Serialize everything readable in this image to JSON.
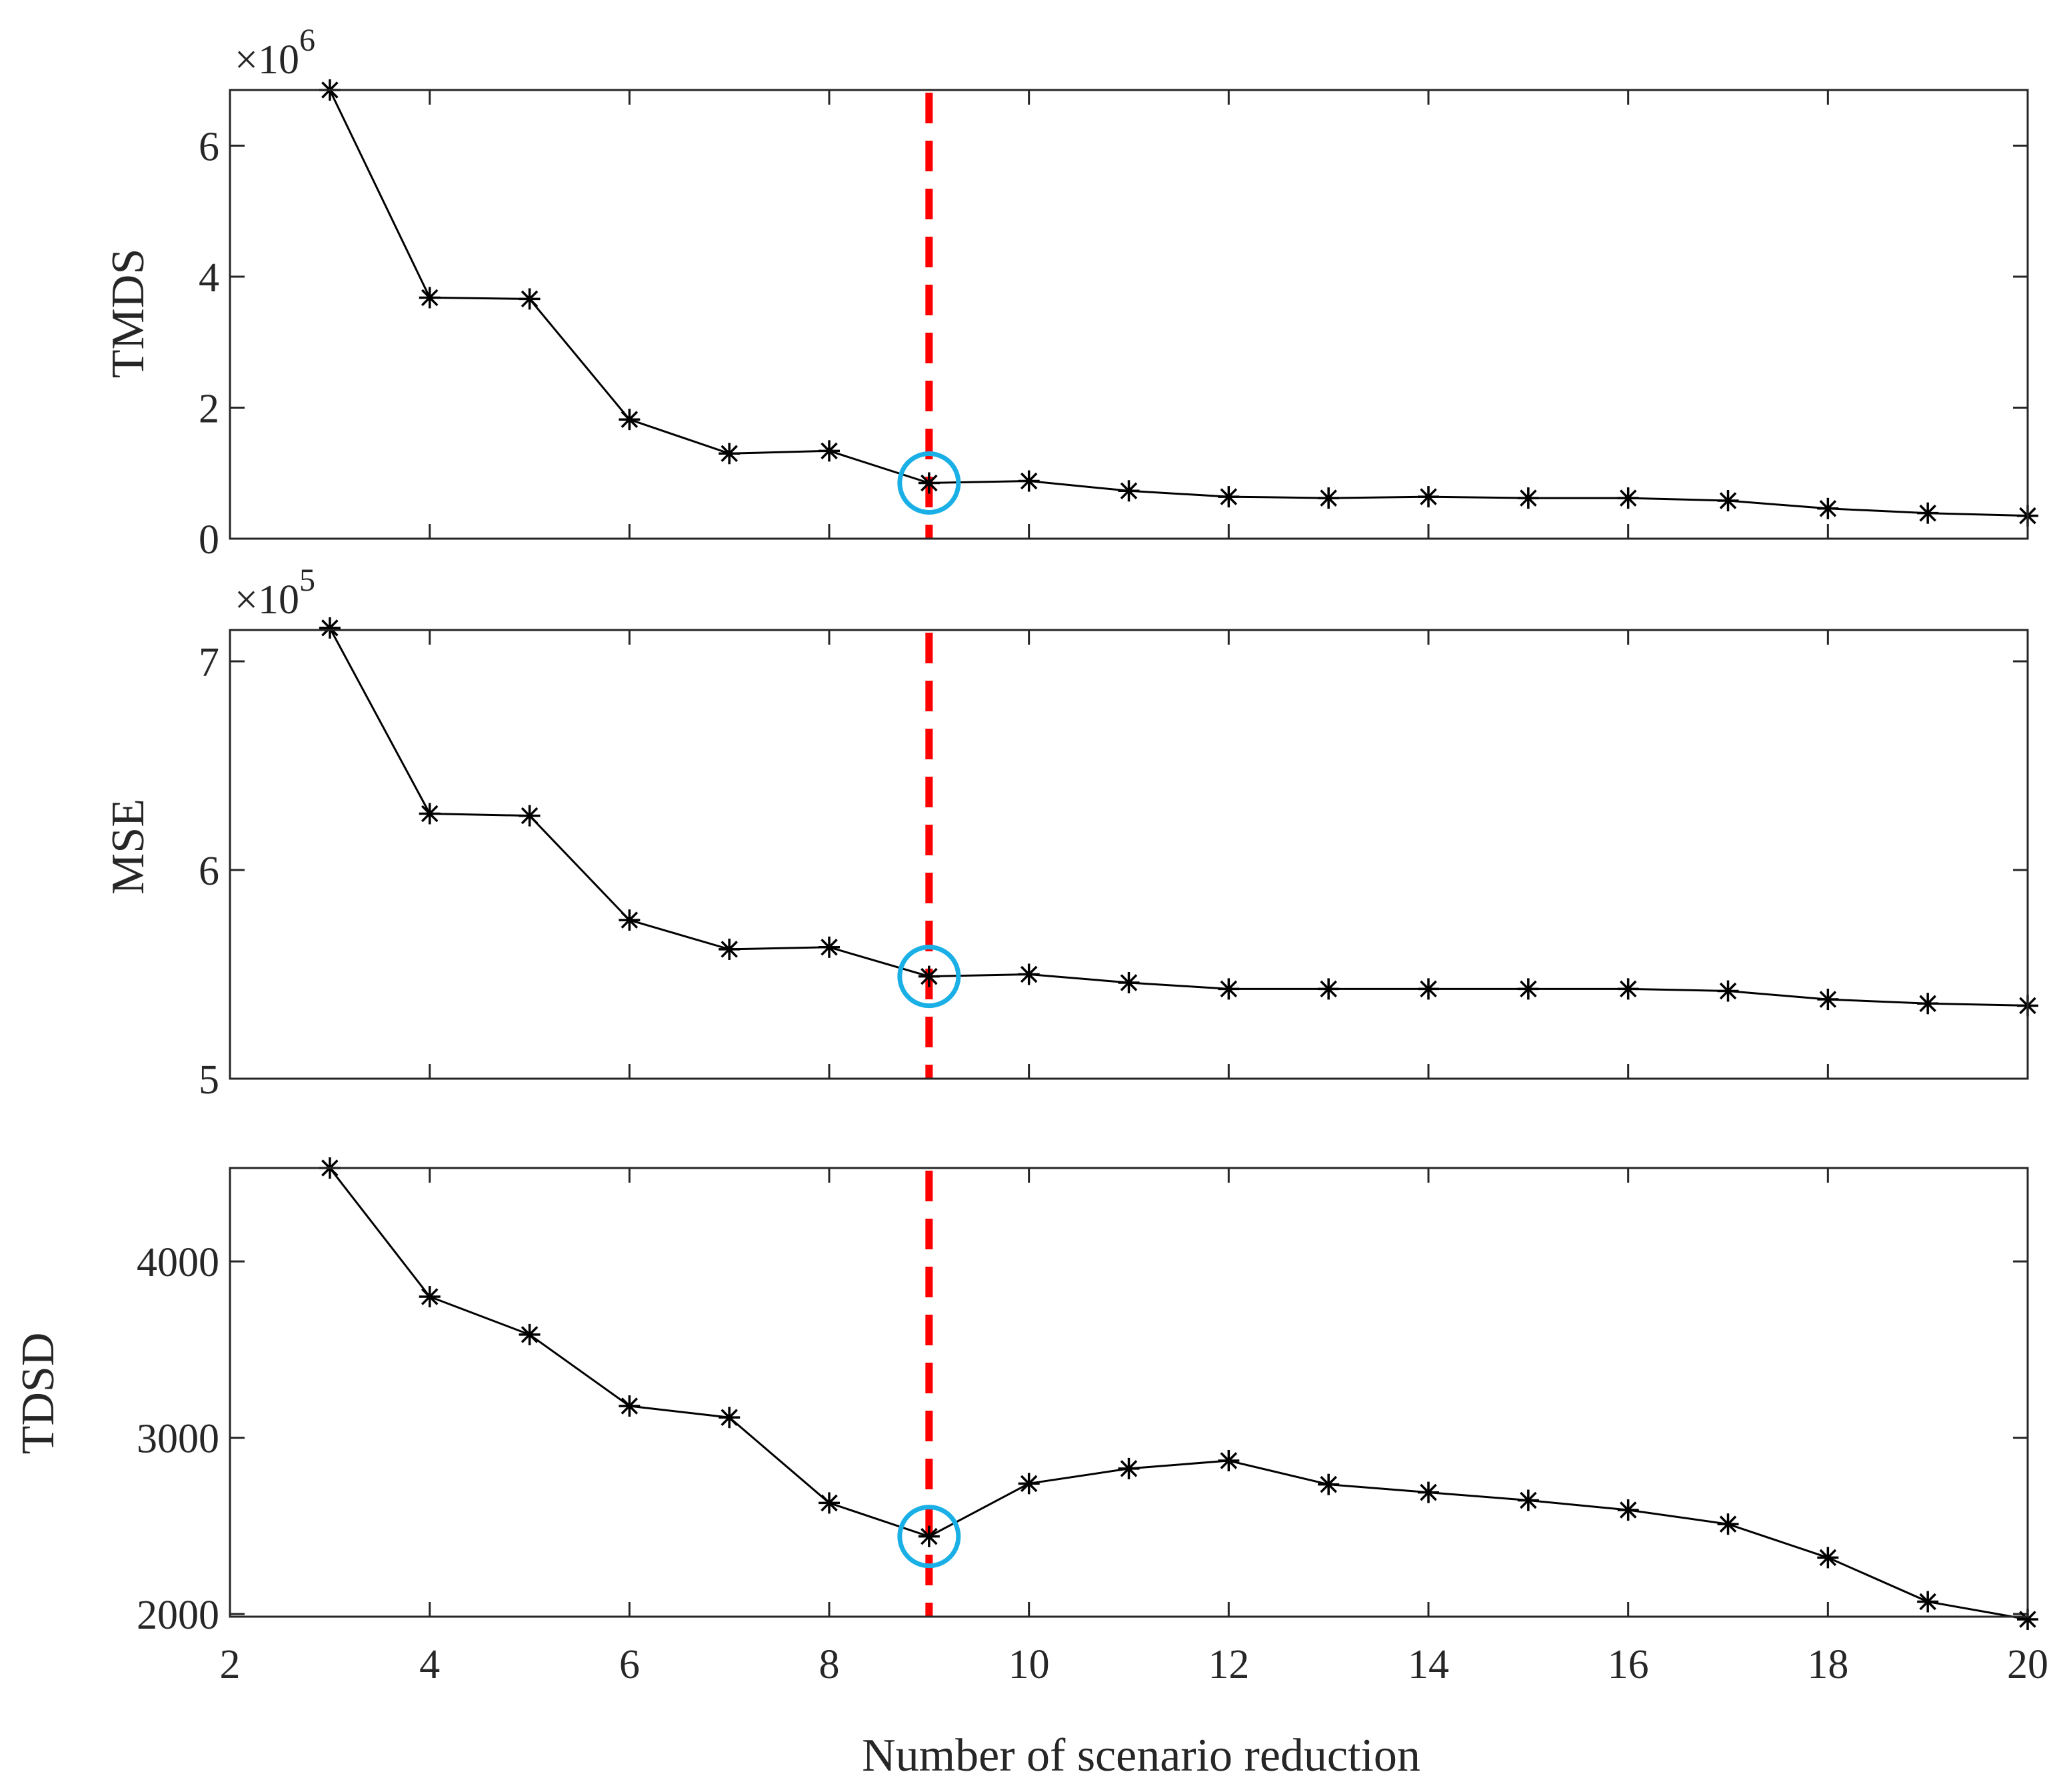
{
  "colors": {
    "series": "#000000",
    "axes": "#262626",
    "vline": "#ff0000",
    "highlight": "#1ab0e6"
  },
  "chart_data": [
    {
      "type": "line",
      "id": "tmds",
      "title": "",
      "xlabel": "",
      "ylabel": "TMDS",
      "exponent_base": "×10",
      "exponent_power": "6",
      "scale": 1000000,
      "x": [
        3,
        4,
        5,
        6,
        7,
        8,
        9,
        10,
        11,
        12,
        13,
        14,
        15,
        16,
        17,
        18,
        19,
        20
      ],
      "values": [
        6.85,
        3.68,
        3.66,
        1.82,
        1.3,
        1.34,
        0.85,
        0.88,
        0.73,
        0.64,
        0.62,
        0.64,
        0.62,
        0.62,
        0.58,
        0.46,
        0.39,
        0.35
      ],
      "xlim": [
        2,
        20
      ],
      "ylim": [
        0,
        6.85
      ],
      "yticks": [
        0,
        2,
        4,
        6
      ],
      "ytick_labels": [
        "0",
        "2",
        "4",
        "6"
      ],
      "show_xtick_labels": false,
      "marker": "asterisk",
      "vline_x": 9,
      "highlight_x": 9,
      "grid": false
    },
    {
      "type": "line",
      "id": "mse",
      "title": "",
      "xlabel": "",
      "ylabel": "MSE",
      "exponent_base": "×10",
      "exponent_power": "5",
      "scale": 100000,
      "x": [
        3,
        4,
        5,
        6,
        7,
        8,
        9,
        10,
        11,
        12,
        13,
        14,
        15,
        16,
        17,
        18,
        19,
        20
      ],
      "values": [
        7.16,
        6.27,
        6.26,
        5.76,
        5.62,
        5.63,
        5.49,
        5.5,
        5.46,
        5.43,
        5.43,
        5.43,
        5.43,
        5.43,
        5.42,
        5.38,
        5.36,
        5.35
      ],
      "xlim": [
        2,
        20
      ],
      "ylim": [
        5.0,
        7.15
      ],
      "yticks": [
        5,
        6,
        7
      ],
      "ytick_labels": [
        "5",
        "6",
        "7"
      ],
      "show_xtick_labels": false,
      "marker": "asterisk",
      "vline_x": 9,
      "highlight_x": 9,
      "grid": false
    },
    {
      "type": "line",
      "id": "tdsd",
      "title": "",
      "xlabel": "Number of scenario reduction",
      "ylabel": "TDSD",
      "x": [
        3,
        4,
        5,
        6,
        7,
        8,
        9,
        10,
        11,
        12,
        13,
        14,
        15,
        16,
        17,
        18,
        19,
        20
      ],
      "values": [
        4530,
        3800,
        3585,
        3180,
        3115,
        2630,
        2440,
        2740,
        2825,
        2870,
        2735,
        2690,
        2645,
        2590,
        2510,
        2320,
        2070,
        1970
      ],
      "xlim": [
        2,
        20
      ],
      "ylim": [
        1985,
        4530
      ],
      "yticks": [
        2000,
        3000,
        4000
      ],
      "ytick_labels": [
        "2000",
        "3000",
        "4000"
      ],
      "xticks": [
        2,
        4,
        6,
        8,
        10,
        12,
        14,
        16,
        18,
        20
      ],
      "xtick_labels": [
        "2",
        "4",
        "6",
        "8",
        "10",
        "12",
        "14",
        "16",
        "18",
        "20"
      ],
      "show_xtick_labels": true,
      "marker": "asterisk",
      "vline_x": 9,
      "highlight_x": 9,
      "grid": false
    }
  ]
}
